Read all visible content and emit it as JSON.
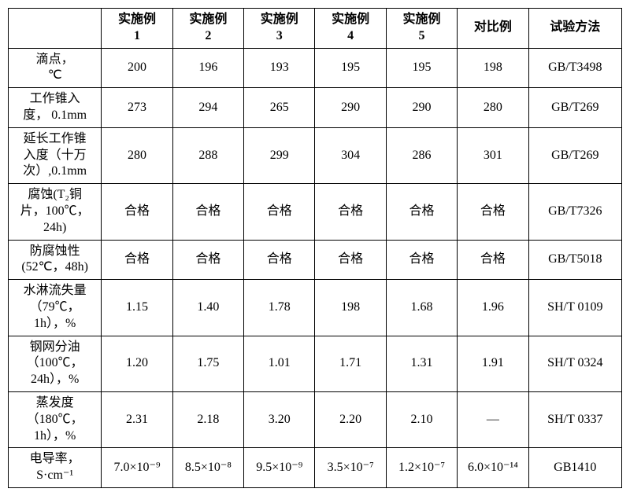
{
  "table": {
    "columns": [
      "",
      "实施例\n1",
      "实施例\n2",
      "实施例\n3",
      "实施例\n4",
      "实施例\n5",
      "对比例",
      "试验方法"
    ],
    "row_labels": [
      "滴点，\n℃",
      "工作锥入\n度，  0.1mm",
      "延长工作锥\n入度（十万\n次）,0.1mm",
      "腐蚀(T₂铜\n片，100℃，\n24h)",
      "防腐蚀性\n(52℃，48h)",
      "水淋流失量\n（79℃，\n1h），%",
      "钢网分油\n（100℃，\n24h），%",
      "蒸发度\n（180℃，\n1h），%",
      "电导率，\nS·cm⁻¹"
    ],
    "rows": [
      [
        "200",
        "196",
        "193",
        "195",
        "195",
        "198",
        "GB/T3498"
      ],
      [
        "273",
        "294",
        "265",
        "290",
        "290",
        "280",
        "GB/T269"
      ],
      [
        "280",
        "288",
        "299",
        "304",
        "286",
        "301",
        "GB/T269"
      ],
      [
        "合格",
        "合格",
        "合格",
        "合格",
        "合格",
        "合格",
        "GB/T7326"
      ],
      [
        "合格",
        "合格",
        "合格",
        "合格",
        "合格",
        "合格",
        "GB/T5018"
      ],
      [
        "1.15",
        "1.40",
        "1.78",
        "198",
        "1.68",
        "1.96",
        "SH/T 0109"
      ],
      [
        "1.20",
        "1.75",
        "1.01",
        "1.71",
        "1.31",
        "1.91",
        "SH/T 0324"
      ],
      [
        "2.31",
        "2.18",
        "3.20",
        "2.20",
        "2.10",
        "—",
        "SH/T 0337"
      ],
      [
        "7.0×10⁻⁹",
        "8.5×10⁻⁸",
        "9.5×10⁻⁹",
        "3.5×10⁻⁷",
        "1.2×10⁻⁷",
        "6.0×10⁻¹⁴",
        "GB1410"
      ]
    ],
    "border_color": "#000000",
    "background_color": "#ffffff",
    "font_size": 16,
    "font_family": "SimSun"
  }
}
